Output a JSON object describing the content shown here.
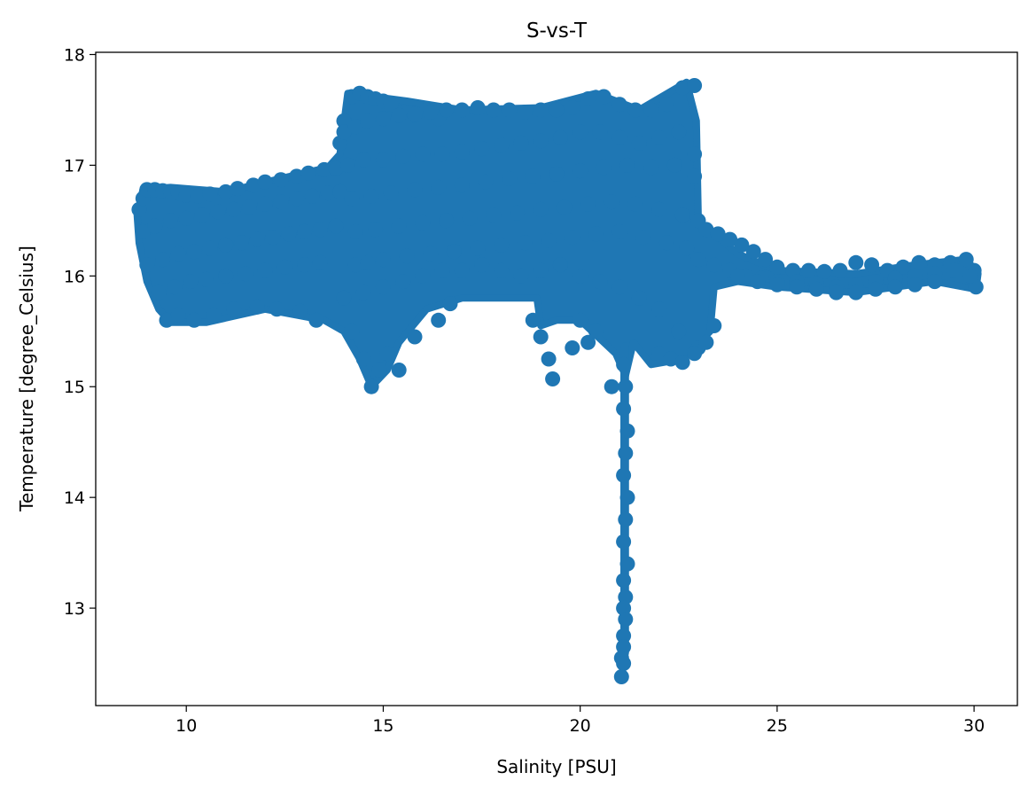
{
  "chart_data": {
    "type": "scatter",
    "title": "S-vs-T",
    "xlabel": "Salinity [PSU]",
    "ylabel": "Temperature [degree_Celsius]",
    "xlim": [
      7.7,
      31.1
    ],
    "ylim": [
      12.12,
      18.02
    ],
    "xticks": [
      10,
      15,
      20,
      25,
      30
    ],
    "yticks": [
      13,
      14,
      15,
      16,
      17,
      18
    ],
    "color": "#1f77b4",
    "grid": false,
    "legend": "none",
    "x": [
      8.8,
      8.9,
      9.0,
      9.2,
      9.4,
      9.6,
      9.8,
      10.0,
      10.3,
      10.6,
      11.0,
      11.3,
      11.7,
      12.0,
      12.4,
      12.8,
      13.1,
      13.5,
      13.8,
      8.9,
      9.2,
      9.6,
      10.0,
      10.4,
      10.8,
      11.2,
      11.6,
      12.0,
      12.4,
      12.8,
      13.2,
      13.6,
      13.9,
      9.0,
      9.4,
      9.8,
      10.2,
      10.6,
      11.0,
      11.4,
      11.8,
      12.2,
      12.6,
      13.0,
      13.4,
      13.8,
      9.3,
      9.7,
      10.1,
      10.5,
      11.0,
      11.5,
      12.0,
      12.5,
      13.0,
      13.4,
      9.5,
      9.8,
      10.2,
      10.7,
      11.2,
      11.8,
      12.3,
      12.9,
      13.3,
      13.9,
      14.0,
      14.2,
      14.4,
      14.6,
      14.8,
      15.0,
      15.2,
      15.5,
      15.8,
      16.1,
      16.4,
      14.0,
      14.3,
      14.6,
      15.0,
      15.4,
      15.8,
      16.2,
      16.6,
      17.0,
      17.4,
      17.8,
      18.2,
      18.6,
      19.0,
      19.4,
      19.8,
      20.2,
      20.6,
      21.0,
      21.4,
      21.8,
      22.2,
      22.6,
      22.9,
      14.1,
      14.5,
      15.0,
      15.5,
      16.0,
      16.5,
      17.0,
      17.5,
      18.0,
      18.5,
      19.0,
      19.5,
      20.0,
      20.5,
      21.0,
      21.5,
      22.0,
      22.5,
      22.9,
      14.2,
      14.7,
      15.2,
      15.8,
      16.4,
      17.0,
      17.6,
      18.2,
      18.8,
      19.4,
      20.0,
      20.6,
      21.2,
      21.8,
      22.4,
      22.9,
      14.3,
      14.8,
      15.4,
      16.0,
      16.6,
      17.2,
      17.8,
      18.4,
      19.0,
      19.6,
      20.2,
      20.8,
      21.4,
      22.0,
      22.6,
      23.0,
      14.3,
      14.6,
      15.0,
      15.6,
      16.2,
      16.8,
      17.4,
      18.0,
      18.6,
      19.2,
      19.8,
      20.4,
      21.0,
      21.6,
      22.2,
      22.7,
      14.0,
      14.5,
      15.0,
      15.5,
      16.0,
      16.5,
      17.0,
      17.5,
      18.0,
      18.5,
      19.0,
      19.5,
      20.0,
      20.5,
      21.0,
      21.5,
      22.0,
      22.5,
      23.0,
      14.2,
      14.5,
      14.7,
      14.9,
      15.1,
      15.4,
      15.8,
      16.4,
      16.7,
      18.8,
      19.0,
      19.2,
      19.3,
      19.8,
      20.0,
      20.2,
      20.4,
      20.8,
      21.1,
      21.15,
      21.1,
      21.2,
      21.15,
      21.1,
      21.2,
      21.15,
      21.1,
      21.2,
      21.1,
      21.15,
      21.1,
      21.15,
      21.1,
      21.1,
      21.05,
      21.1,
      21.05,
      22.0,
      22.3,
      22.6,
      22.9,
      23.2,
      23.4,
      23.2,
      23.5,
      23.8,
      24.1,
      24.4,
      24.7,
      25.0,
      25.4,
      25.8,
      26.2,
      26.6,
      27.0,
      27.4,
      27.8,
      28.2,
      28.6,
      29.0,
      29.4,
      29.8,
      30.0,
      30.05,
      23.0,
      23.4,
      23.8,
      24.2,
      24.6,
      25.0,
      25.5,
      26.0,
      26.5,
      27.0,
      27.5,
      28.0,
      28.5,
      29.0,
      29.5,
      29.9,
      24.0,
      24.5,
      25.0,
      25.5,
      26.0,
      26.5,
      27.0,
      27.5,
      28.0,
      28.5,
      29.0
    ],
    "y": [
      16.6,
      16.7,
      16.78,
      16.78,
      16.77,
      16.76,
      16.75,
      16.73,
      16.72,
      16.74,
      16.76,
      16.79,
      16.82,
      16.85,
      16.87,
      16.9,
      16.93,
      16.96,
      16.97,
      16.4,
      16.45,
      16.5,
      16.52,
      16.55,
      16.58,
      16.6,
      16.62,
      16.65,
      16.67,
      16.7,
      16.72,
      16.75,
      16.76,
      16.1,
      16.15,
      16.2,
      16.22,
      16.25,
      16.28,
      16.3,
      16.33,
      16.35,
      16.38,
      16.4,
      16.42,
      16.45,
      15.85,
      15.9,
      15.95,
      15.97,
      16.0,
      16.02,
      16.05,
      16.08,
      16.1,
      16.12,
      15.6,
      15.65,
      15.6,
      15.65,
      15.7,
      15.72,
      15.7,
      15.68,
      15.6,
      17.2,
      17.4,
      17.62,
      17.65,
      17.62,
      17.6,
      17.58,
      17.55,
      17.48,
      17.45,
      17.5,
      17.42,
      17.3,
      17.35,
      17.4,
      17.42,
      17.45,
      17.46,
      17.48,
      17.5,
      17.5,
      17.52,
      17.5,
      17.5,
      17.48,
      17.5,
      17.5,
      17.52,
      17.6,
      17.62,
      17.55,
      17.5,
      17.5,
      17.55,
      17.7,
      17.72,
      17.0,
      17.05,
      17.05,
      17.08,
      17.1,
      17.1,
      17.12,
      17.15,
      17.18,
      17.2,
      17.22,
      17.25,
      17.3,
      17.3,
      17.25,
      17.2,
      17.25,
      17.3,
      17.1,
      16.7,
      16.72,
      16.75,
      16.78,
      16.8,
      16.82,
      16.85,
      16.88,
      16.9,
      16.92,
      16.95,
      16.98,
      17.0,
      16.98,
      17.0,
      16.9,
      16.4,
      16.42,
      16.45,
      16.48,
      16.5,
      16.52,
      16.55,
      16.57,
      16.6,
      16.62,
      16.65,
      16.67,
      16.65,
      16.6,
      16.55,
      16.5,
      16.1,
      16.12,
      16.15,
      16.18,
      16.2,
      16.22,
      16.25,
      16.28,
      16.3,
      16.32,
      16.35,
      16.38,
      16.4,
      16.35,
      16.3,
      16.25,
      15.8,
      15.85,
      15.9,
      15.95,
      16.0,
      16.05,
      16.05,
      16.1,
      16.05,
      16.0,
      16.05,
      16.1,
      16.0,
      15.95,
      15.9,
      15.8,
      15.7,
      15.5,
      15.35,
      15.5,
      15.25,
      15.0,
      15.15,
      15.3,
      15.15,
      15.45,
      15.6,
      15.75,
      15.6,
      15.45,
      15.25,
      15.07,
      15.35,
      15.6,
      15.4,
      15.5,
      15.0,
      15.2,
      15.0,
      14.8,
      14.6,
      14.4,
      14.2,
      14.0,
      13.8,
      13.6,
      13.4,
      13.25,
      13.1,
      13.0,
      12.9,
      12.75,
      12.65,
      12.55,
      12.5,
      12.38,
      15.3,
      15.25,
      15.22,
      15.3,
      15.4,
      15.55,
      16.42,
      16.38,
      16.33,
      16.28,
      16.22,
      16.15,
      16.08,
      16.05,
      16.05,
      16.04,
      16.05,
      16.12,
      16.1,
      16.05,
      16.08,
      16.12,
      16.1,
      16.12,
      16.15,
      16.05,
      15.9,
      16.15,
      16.1,
      16.05,
      16.0,
      15.98,
      15.95,
      15.95,
      15.93,
      15.9,
      15.92,
      15.95,
      15.98,
      16.0,
      16.02,
      16.05,
      16.0,
      16.0,
      15.95,
      15.92,
      15.9,
      15.88,
      15.85,
      15.85,
      15.88,
      15.9,
      15.92,
      15.95
    ]
  }
}
